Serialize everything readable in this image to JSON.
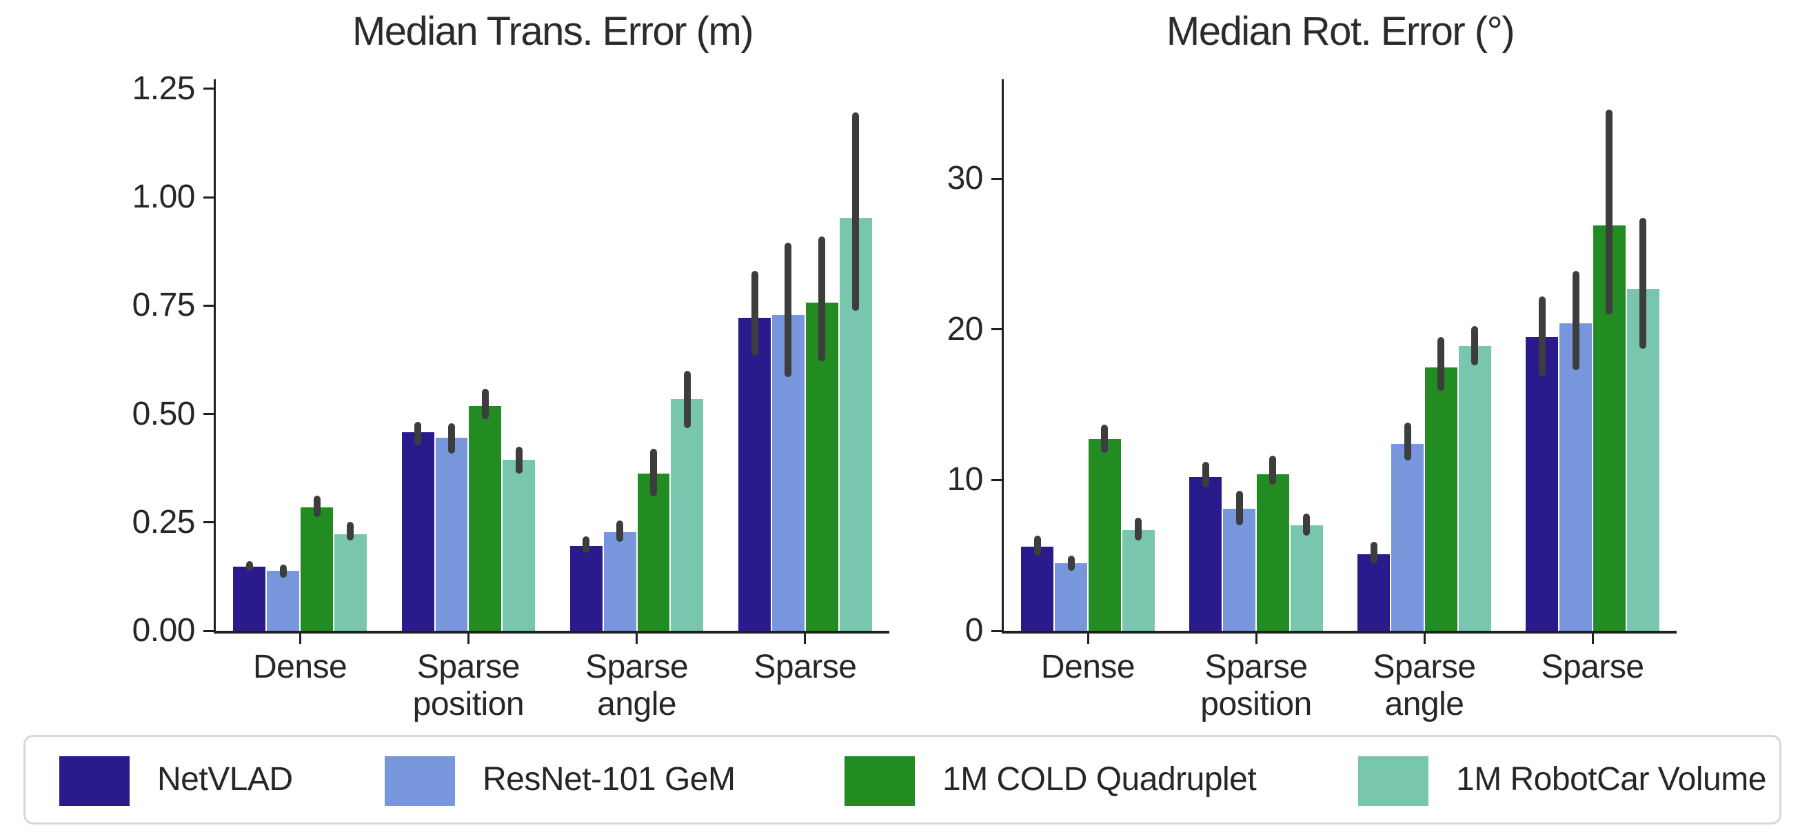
{
  "figure": {
    "background": "#ffffff",
    "text_color": "#262626",
    "spine_color": "#1f1f1f",
    "error_bar_color": "#3d3d3d"
  },
  "legend": {
    "items": [
      {
        "label": "NetVLAD",
        "color": "#2A1B8C"
      },
      {
        "label": "ResNet-101 GeM",
        "color": "#7796DB"
      },
      {
        "label": "1M COLD Quadruplet",
        "color": "#228B22"
      },
      {
        "label": "1M RobotCar Volume",
        "color": "#79C6AE"
      }
    ]
  },
  "chart_data": [
    {
      "type": "bar",
      "title": "Median Trans. Error (m)",
      "categories": [
        "Dense",
        "Sparse\nposition",
        "Sparse\nangle",
        "Sparse"
      ],
      "ylim": [
        0,
        1.272
      ],
      "yticks": [
        0,
        0.25,
        0.5,
        0.75,
        1.0,
        1.25
      ],
      "ytick_labels": [
        "0.00",
        "0.25",
        "0.50",
        "0.75",
        "1.00",
        "1.25"
      ],
      "grid": false,
      "legend_position": "figure-bottom",
      "series": [
        {
          "name": "NetVLAD",
          "color": "#2A1B8C",
          "values": [
            0.148,
            0.458,
            0.195,
            0.722
          ],
          "err_low": [
            0.138,
            0.428,
            0.18,
            0.635
          ],
          "err_high": [
            0.16,
            0.482,
            0.218,
            0.83
          ]
        },
        {
          "name": "ResNet-101 GeM",
          "color": "#7796DB",
          "values": [
            0.138,
            0.445,
            0.228,
            0.728
          ],
          "err_low": [
            0.122,
            0.408,
            0.205,
            0.585
          ],
          "err_high": [
            0.152,
            0.478,
            0.255,
            0.895
          ]
        },
        {
          "name": "1M COLD Quadruplet",
          "color": "#228B22",
          "values": [
            0.285,
            0.518,
            0.362,
            0.757
          ],
          "err_low": [
            0.262,
            0.488,
            0.31,
            0.622
          ],
          "err_high": [
            0.312,
            0.558,
            0.42,
            0.91
          ]
        },
        {
          "name": "1M RobotCar Volume",
          "color": "#79C6AE",
          "values": [
            0.223,
            0.395,
            0.535,
            0.952
          ],
          "err_low": [
            0.208,
            0.362,
            0.468,
            0.738
          ],
          "err_high": [
            0.252,
            0.425,
            0.6,
            1.195
          ]
        }
      ]
    },
    {
      "type": "bar",
      "title": "Median Rot. Error (°)",
      "categories": [
        "Dense",
        "Sparse\nposition",
        "Sparse\nangle",
        "Sparse"
      ],
      "ylim": [
        0,
        36.6
      ],
      "yticks": [
        0,
        10,
        20,
        30
      ],
      "ytick_labels": [
        "0",
        "10",
        "20",
        "30"
      ],
      "grid": false,
      "legend_position": "figure-bottom",
      "series": [
        {
          "name": "NetVLAD",
          "color": "#2A1B8C",
          "values": [
            5.6,
            10.2,
            5.1,
            19.5
          ],
          "err_low": [
            5.0,
            9.5,
            4.5,
            16.9
          ],
          "err_high": [
            6.3,
            11.2,
            5.9,
            22.2
          ]
        },
        {
          "name": "ResNet-101 GeM",
          "color": "#7796DB",
          "values": [
            4.5,
            8.1,
            12.4,
            20.4
          ],
          "err_low": [
            4.0,
            7.0,
            11.3,
            17.3
          ],
          "err_high": [
            5.0,
            9.3,
            13.8,
            23.9
          ]
        },
        {
          "name": "1M COLD Quadruplet",
          "color": "#228B22",
          "values": [
            12.7,
            10.4,
            17.5,
            26.9
          ],
          "err_low": [
            11.8,
            9.7,
            15.9,
            21.0
          ],
          "err_high": [
            13.7,
            11.6,
            19.5,
            34.6
          ]
        },
        {
          "name": "1M RobotCar Volume",
          "color": "#79C6AE",
          "values": [
            6.7,
            7.0,
            18.9,
            22.7
          ],
          "err_low": [
            6.0,
            6.3,
            17.6,
            18.7
          ],
          "err_high": [
            7.5,
            7.8,
            20.2,
            27.4
          ]
        }
      ]
    }
  ]
}
